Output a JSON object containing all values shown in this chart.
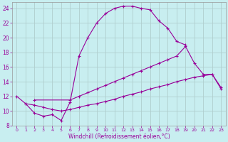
{
  "xlabel": "Windchill (Refroidissement éolien,°C)",
  "bg_color": "#c8eef0",
  "line_color": "#990099",
  "grid_color": "#b0cece",
  "xlim": [
    -0.5,
    23.5
  ],
  "ylim": [
    8,
    24.8
  ],
  "xticks": [
    0,
    1,
    2,
    3,
    4,
    5,
    6,
    7,
    8,
    9,
    10,
    11,
    12,
    13,
    14,
    15,
    16,
    17,
    18,
    19,
    20,
    21,
    22,
    23
  ],
  "yticks": [
    8,
    10,
    12,
    14,
    16,
    18,
    20,
    22,
    24
  ],
  "curves": [
    {
      "x": [
        0,
        1,
        2,
        3,
        4,
        5,
        6,
        7,
        8,
        9,
        10,
        11,
        12,
        13,
        14,
        15,
        16,
        17,
        18,
        19
      ],
      "y": [
        12,
        11,
        9.7,
        9.3,
        9.5,
        8.7,
        11.2,
        17.5,
        20,
        22,
        23.3,
        24.0,
        24.3,
        24.3,
        24.0,
        23.8,
        22.3,
        21.3,
        19.5,
        19.0
      ]
    },
    {
      "x": [
        2,
        6,
        7,
        8,
        9,
        10,
        11,
        12,
        13,
        14,
        15,
        16,
        17,
        18,
        19,
        20,
        21,
        22,
        23
      ],
      "y": [
        11.5,
        11.5,
        12.0,
        12.5,
        13.0,
        13.5,
        14.0,
        14.5,
        15.0,
        15.5,
        16.0,
        16.5,
        17.0,
        17.5,
        18.8,
        16.5,
        15.0,
        15.0,
        13.0
      ]
    },
    {
      "x": [
        1,
        2,
        3,
        4,
        5,
        6,
        7,
        8,
        9,
        10,
        11,
        12,
        13,
        14,
        15,
        16,
        17,
        18,
        19,
        20,
        21,
        22,
        23
      ],
      "y": [
        11.0,
        10.8,
        10.5,
        10.2,
        10.0,
        10.2,
        10.5,
        10.8,
        11.0,
        11.3,
        11.6,
        12.0,
        12.3,
        12.6,
        13.0,
        13.3,
        13.6,
        14.0,
        14.3,
        14.6,
        14.8,
        15.0,
        13.2
      ]
    }
  ]
}
